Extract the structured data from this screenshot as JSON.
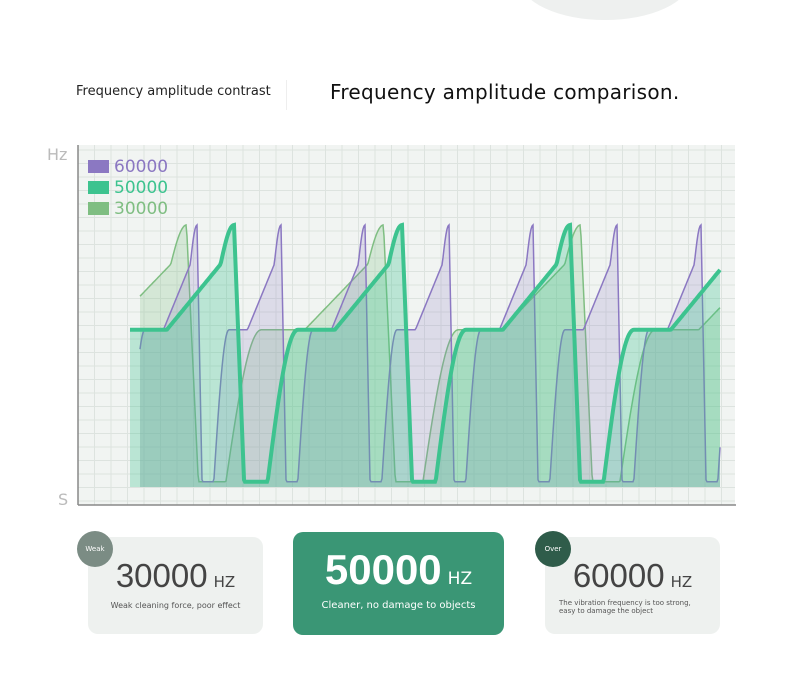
{
  "header": {
    "subtitle": "Frequency amplitude contrast",
    "title": "Frequency amplitude comparison."
  },
  "axes": {
    "y_top": "Hz",
    "y_bottom": "S"
  },
  "legend": [
    {
      "label": "60000",
      "color": "#8b78c2"
    },
    {
      "label": "50000",
      "color": "#3dc38f"
    },
    {
      "label": "30000",
      "color": "#7fbe82"
    }
  ],
  "cards": [
    {
      "badge": "Weak",
      "value": "30000",
      "unit": "HZ",
      "desc": "Weak cleaning force, poor effect",
      "badge_color": "#7b8c84"
    },
    {
      "value": "50000",
      "unit": "HZ",
      "desc": "Cleaner, no damage to objects",
      "bg": "#3a9675"
    },
    {
      "badge": "Over",
      "value": "60000",
      "unit": "HZ",
      "desc": "The vibration frequency is too strong, easy to damage the object",
      "badge_color": "#2f5c4a"
    }
  ]
}
